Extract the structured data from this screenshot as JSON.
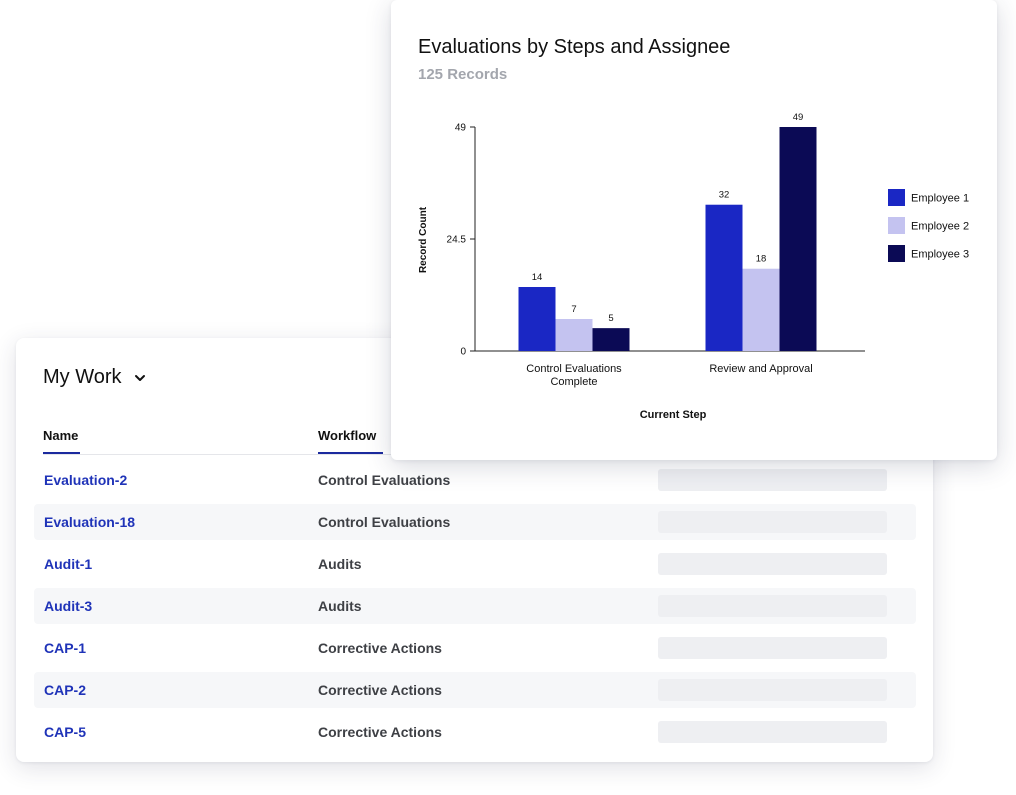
{
  "my_work": {
    "title": "My Work",
    "columns": {
      "name": "Name",
      "workflow": "Workflow"
    },
    "rows": [
      {
        "name": "Evaluation-2",
        "workflow": "Control Evaluations"
      },
      {
        "name": "Evaluation-18",
        "workflow": "Control Evaluations"
      },
      {
        "name": "Audit-1",
        "workflow": "Audits"
      },
      {
        "name": "Audit-3",
        "workflow": "Audits"
      },
      {
        "name": "CAP-1",
        "workflow": "Corrective Actions"
      },
      {
        "name": "CAP-2",
        "workflow": "Corrective Actions"
      },
      {
        "name": "CAP-5",
        "workflow": "Corrective Actions"
      }
    ]
  },
  "chart_card": {
    "title": "Evaluations by Steps and Assignee",
    "subtitle": "125 Records"
  },
  "chart_data": {
    "type": "bar",
    "title": "Evaluations by Steps and Assignee",
    "subtitle": "125 Records",
    "categories": [
      "Control Evaluations Complete",
      "Review and Approval"
    ],
    "category_label_lines": [
      [
        "Control Evaluations",
        "Complete"
      ],
      [
        "Review and Approval"
      ]
    ],
    "series": [
      {
        "name": "Employee 1",
        "color": "#1a27c4",
        "values": [
          14,
          32
        ]
      },
      {
        "name": "Employee 2",
        "color": "#c4c3f0",
        "values": [
          7,
          18
        ]
      },
      {
        "name": "Employee 3",
        "color": "#0b0a55",
        "values": [
          5,
          49
        ]
      }
    ],
    "xlabel": "Current Step",
    "ylabel": "Record Count",
    "ylim": [
      0,
      49
    ],
    "yticks": [
      "0",
      "24.5",
      "49"
    ],
    "ytick_values": [
      0,
      24.5,
      49
    ],
    "grid": false,
    "legend": "right"
  }
}
